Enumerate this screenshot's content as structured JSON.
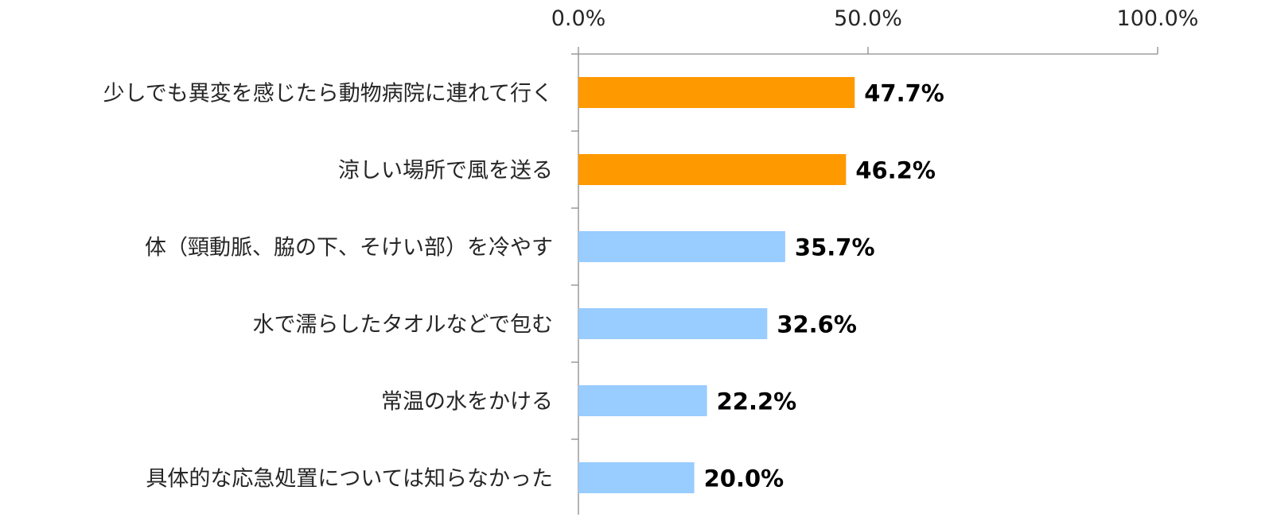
{
  "chart_data": {
    "type": "bar",
    "orientation": "horizontal",
    "title": "",
    "xlabel": "",
    "ylabel": "",
    "xlim": [
      0,
      100
    ],
    "x_ticks": [
      0,
      50,
      100
    ],
    "x_tick_labels": [
      "0.0%",
      "50.0%",
      "100.0%"
    ],
    "x_axis_position": "top",
    "grid": false,
    "legend": "none",
    "categories": [
      "少しでも異変を感じたら動物病院に連れて行く",
      "涼しい場所で風を送る",
      "体（頸動脈、脇の下、そけい部）を冷やす",
      "水で濡らしたタオルなどで包む",
      "常温の水をかける",
      "具体的な応急処置については知らなかった"
    ],
    "values": [
      47.7,
      46.2,
      35.7,
      32.6,
      22.2,
      20.0
    ],
    "data_labels": [
      "47.7%",
      "46.2%",
      "35.7%",
      "32.6%",
      "22.2%",
      "20.0%"
    ],
    "bar_colors": [
      "#FF9900",
      "#FF9900",
      "#99CCFF",
      "#99CCFF",
      "#99CCFF",
      "#99CCFF"
    ]
  }
}
